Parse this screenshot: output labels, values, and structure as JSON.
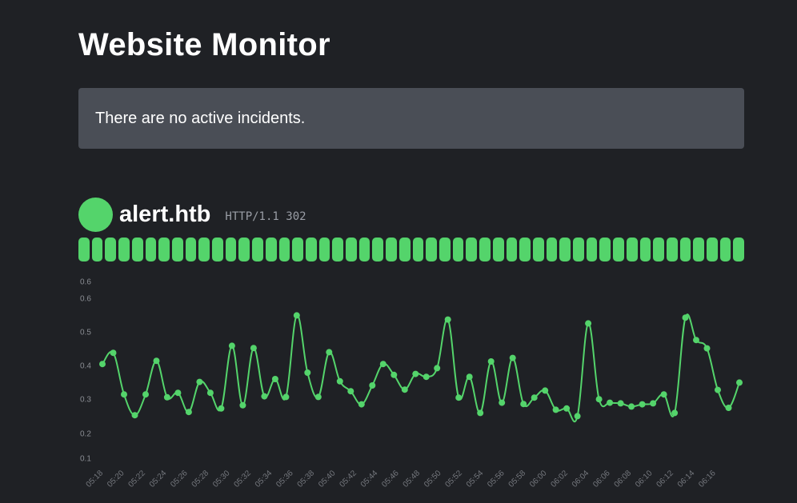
{
  "page": {
    "title": "Website Monitor",
    "incident_message": "There are no active incidents."
  },
  "monitor": {
    "name": "alert.htb",
    "status_text": "HTTP/1.1 302",
    "status_color": "#54d46b",
    "heartbeats_up": 50
  },
  "chart_data": {
    "type": "line",
    "title": "",
    "xlabel": "",
    "ylabel": "",
    "y_tick_labels": [
      "0.6",
      "0.6",
      "0.5",
      "0.4",
      "0.3",
      "0.2",
      "0.1"
    ],
    "x_tick_labels": [
      "05:18",
      "05:20",
      "05:22",
      "05:24",
      "05:26",
      "05:28",
      "05:30",
      "05:32",
      "05:34",
      "05:36",
      "05:38",
      "05:40",
      "05:42",
      "05:44",
      "05:46",
      "05:48",
      "05:50",
      "05:52",
      "05:54",
      "05:56",
      "05:58",
      "06:00",
      "06:02",
      "06:04",
      "06:06",
      "06:08",
      "06:10",
      "06:12",
      "06:14",
      "06:16"
    ],
    "x_start": "05:18",
    "x_step_minutes": 1,
    "ylim": [
      0.1,
      0.6
    ],
    "grid": false,
    "legend": "none",
    "line_color": "#54d46b",
    "series": [
      {
        "values": [
          0.392,
          0.427,
          0.297,
          0.232,
          0.297,
          0.402,
          0.288,
          0.302,
          0.242,
          0.336,
          0.302,
          0.253,
          0.449,
          0.263,
          0.442,
          0.291,
          0.345,
          0.289,
          0.544,
          0.365,
          0.289,
          0.429,
          0.338,
          0.307,
          0.266,
          0.325,
          0.392,
          0.358,
          0.312,
          0.361,
          0.352,
          0.379,
          0.531,
          0.287,
          0.352,
          0.239,
          0.4,
          0.271,
          0.411,
          0.267,
          0.287,
          0.309,
          0.249,
          0.253,
          0.229,
          0.519,
          0.282,
          0.271,
          0.269,
          0.259,
          0.266,
          0.269,
          0.297,
          0.239,
          0.537,
          0.467,
          0.441,
          0.311,
          0.255,
          0.334
        ]
      }
    ]
  }
}
